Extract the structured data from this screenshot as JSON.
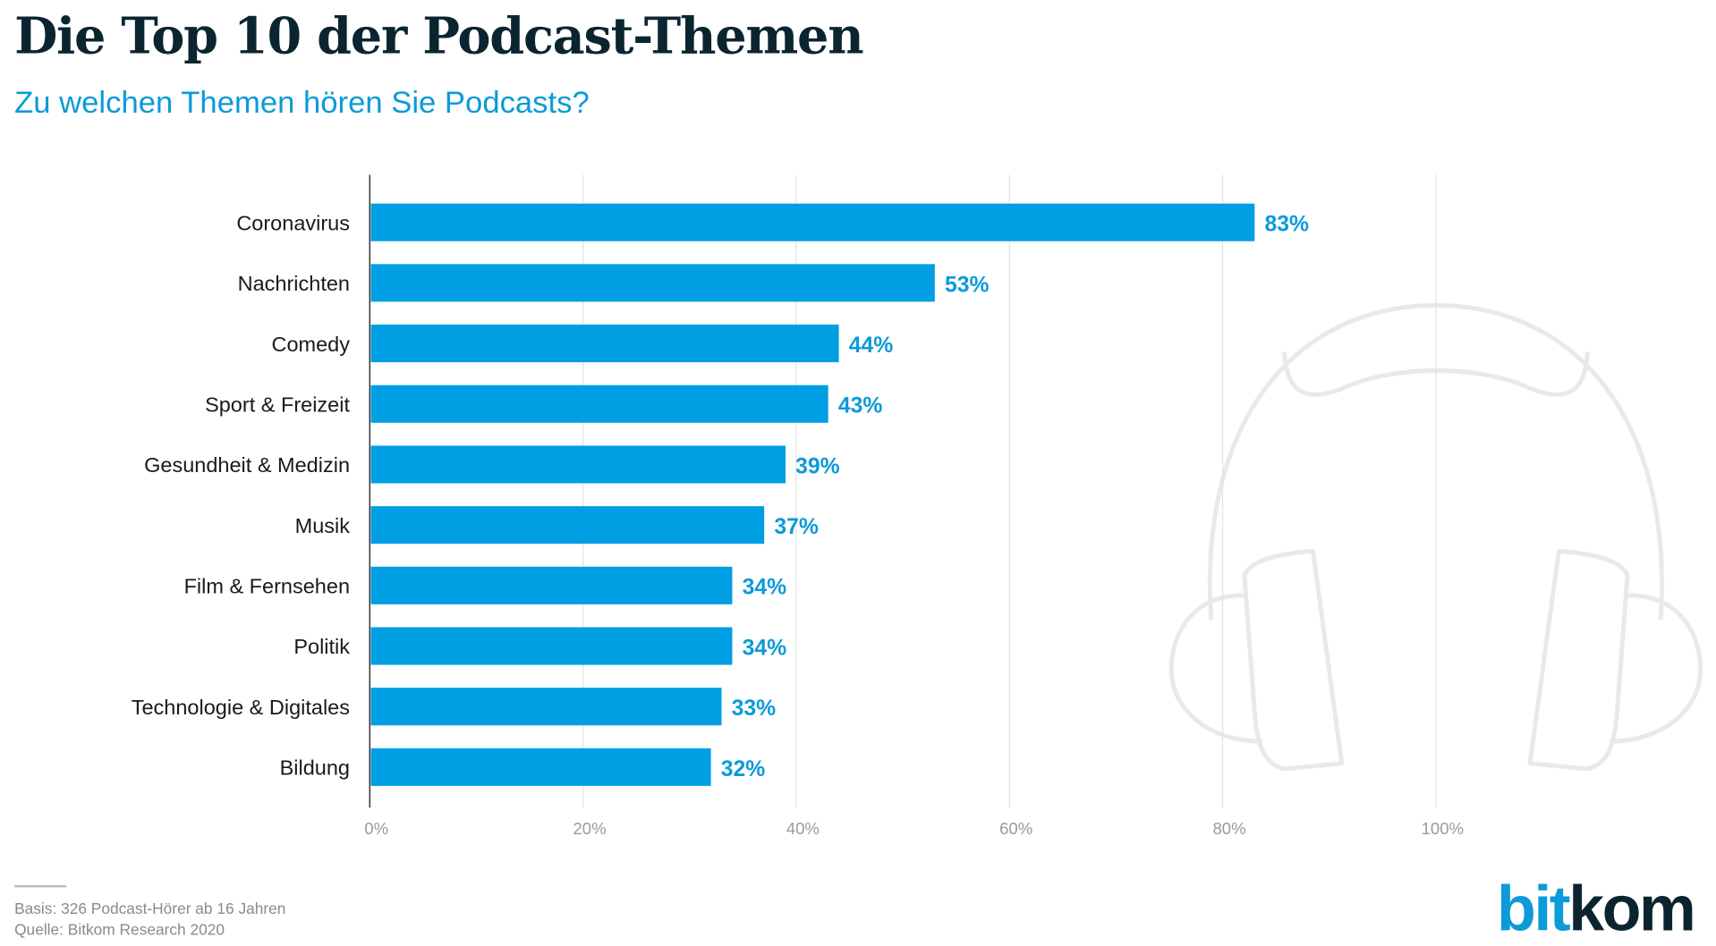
{
  "title": "Die Top 10 der Podcast-Themen",
  "subtitle": "Zu welchen Themen hören Sie Podcasts?",
  "chart_data": {
    "type": "bar",
    "orientation": "horizontal",
    "categories": [
      "Coronavirus",
      "Nachrichten",
      "Comedy",
      "Sport & Freizeit",
      "Gesundheit & Medizin",
      "Musik",
      "Film & Fernsehen",
      "Politik",
      "Technologie & Digitales",
      "Bildung"
    ],
    "values": [
      83,
      53,
      44,
      43,
      39,
      37,
      34,
      34,
      33,
      32
    ],
    "value_labels": [
      "83%",
      "53%",
      "44%",
      "43%",
      "39%",
      "37%",
      "34%",
      "34%",
      "33%",
      "32%"
    ],
    "xlim": [
      0,
      100
    ],
    "xticks": [
      0,
      20,
      40,
      60,
      80,
      100
    ],
    "xtick_labels": [
      "0%",
      "20%",
      "40%",
      "60%",
      "80%",
      "100%"
    ],
    "grid": true,
    "bar_color": "#009fe3"
  },
  "footer": {
    "basis": "Basis: 326 Podcast-Hörer ab 16 Jahren",
    "source": "Quelle: Bitkom Research 2020"
  },
  "logo": {
    "part1": "bit",
    "part2": "kom",
    "color1": "#0c9ad8",
    "color2": "#0b2530"
  }
}
